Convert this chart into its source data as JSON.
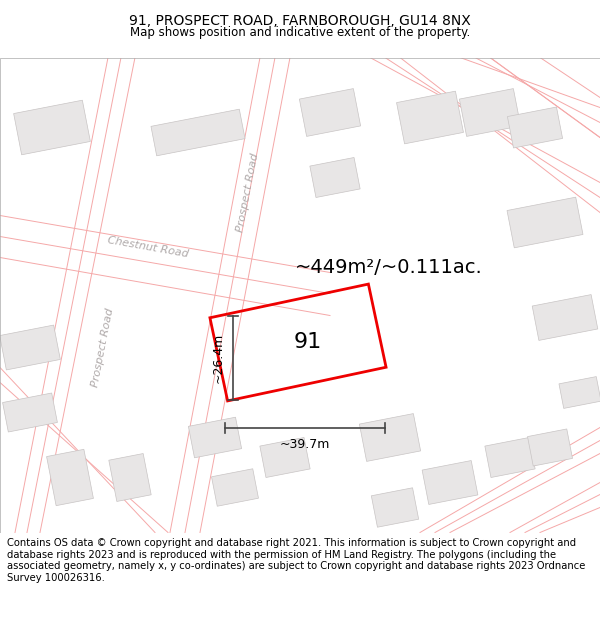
{
  "title": "91, PROSPECT ROAD, FARNBOROUGH, GU14 8NX",
  "subtitle": "Map shows position and indicative extent of the property.",
  "footer": "Contains OS data © Crown copyright and database right 2021. This information is subject to Crown copyright and database rights 2023 and is reproduced with the permission of HM Land Registry. The polygons (including the associated geometry, namely x, y co-ordinates) are subject to Crown copyright and database rights 2023 Ordnance Survey 100026316.",
  "area_text": "~449m²/~0.111ac.",
  "label_91": "91",
  "dim_width": "~39.7m",
  "dim_height": "~26.4m",
  "map_bg": "#f7f5f5",
  "road_fill": "#ffffff",
  "building_fill": "#e8e6e6",
  "building_edge": "#c8c4c4",
  "road_label_color": "#b0aaaa",
  "highlight_color": "#ee0000",
  "road_line_color": "#f5a8a8",
  "dim_line_color": "#444444",
  "title_fontsize": 10,
  "subtitle_fontsize": 8.5,
  "footer_fontsize": 7.2,
  "area_fontsize": 14,
  "label_fontsize": 16,
  "dim_fontsize": 9,
  "road_label_fontsize": 8
}
